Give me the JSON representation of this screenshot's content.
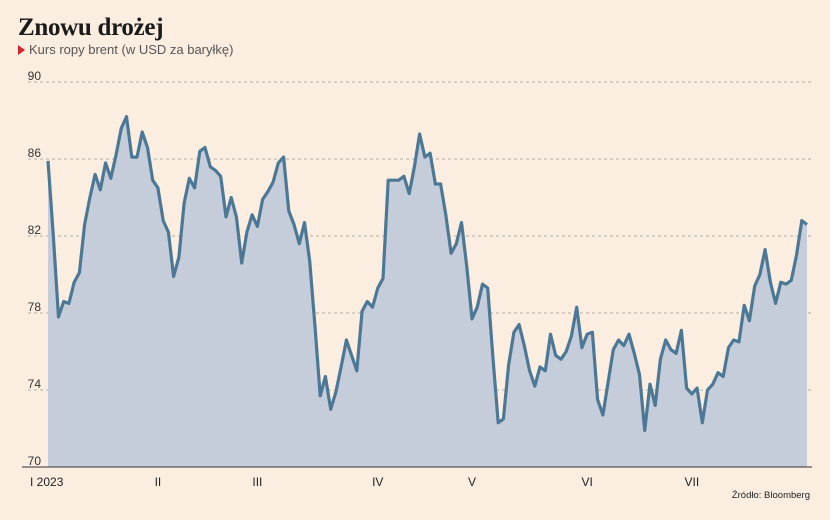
{
  "title": "Znowu drożej",
  "subtitle": "Kurs ropy brent (w USD za baryłkę)",
  "source": "Źródło: Bloomberg",
  "colors": {
    "background": "#fbeee0",
    "line": "#4d7895",
    "area": "#c5ccda",
    "marker": "#d7262e"
  },
  "chart_data": {
    "type": "area",
    "ylim": [
      70,
      90
    ],
    "yticks": [
      70,
      74,
      78,
      82,
      86,
      90
    ],
    "grid": true,
    "xticks": [
      {
        "i": 0,
        "label": "I 2023"
      },
      {
        "i": 21,
        "label": "II"
      },
      {
        "i": 40,
        "label": "III"
      },
      {
        "i": 63,
        "label": "IV"
      },
      {
        "i": 81,
        "label": "V"
      },
      {
        "i": 103,
        "label": "VI"
      },
      {
        "i": 123,
        "label": "VII"
      }
    ],
    "values": [
      85.9,
      82.1,
      77.8,
      78.6,
      78.5,
      79.6,
      80.1,
      82.6,
      84.0,
      85.2,
      84.4,
      85.8,
      85.0,
      86.2,
      87.6,
      88.2,
      86.1,
      86.1,
      87.4,
      86.6,
      84.9,
      84.5,
      82.8,
      82.2,
      79.9,
      80.9,
      83.7,
      85.0,
      84.5,
      86.4,
      86.6,
      85.6,
      85.4,
      85.1,
      83.0,
      84.0,
      83.0,
      80.6,
      82.2,
      83.1,
      82.5,
      83.9,
      84.3,
      84.8,
      85.8,
      86.1,
      83.3,
      82.6,
      81.6,
      82.7,
      80.7,
      77.3,
      73.7,
      74.7,
      73.0,
      73.9,
      75.2,
      76.6,
      75.8,
      75.0,
      78.1,
      78.6,
      78.3,
      79.3,
      79.8,
      84.9,
      84.9,
      84.9,
      85.1,
      84.2,
      85.6,
      87.3,
      86.1,
      86.3,
      84.7,
      84.7,
      83.1,
      81.1,
      81.6,
      82.7,
      80.4,
      77.7,
      78.3,
      79.5,
      79.3,
      75.7,
      72.3,
      72.5,
      75.3,
      77.0,
      77.4,
      76.3,
      75.0,
      74.2,
      75.2,
      75.0,
      76.9,
      75.8,
      75.6,
      76.0,
      76.8,
      78.3,
      76.2,
      76.9,
      77.0,
      73.5,
      72.7,
      74.4,
      76.1,
      76.6,
      76.3,
      76.9,
      75.9,
      74.8,
      71.9,
      74.3,
      73.2,
      75.6,
      76.6,
      76.1,
      75.9,
      77.1,
      74.1,
      73.8,
      74.1,
      72.3,
      74.0,
      74.3,
      74.9,
      74.7,
      76.2,
      76.6,
      76.5,
      78.4,
      77.6,
      79.4,
      80.0,
      81.3,
      79.6,
      78.5,
      79.6,
      79.5,
      79.7,
      81.0,
      82.8,
      82.6
    ]
  }
}
